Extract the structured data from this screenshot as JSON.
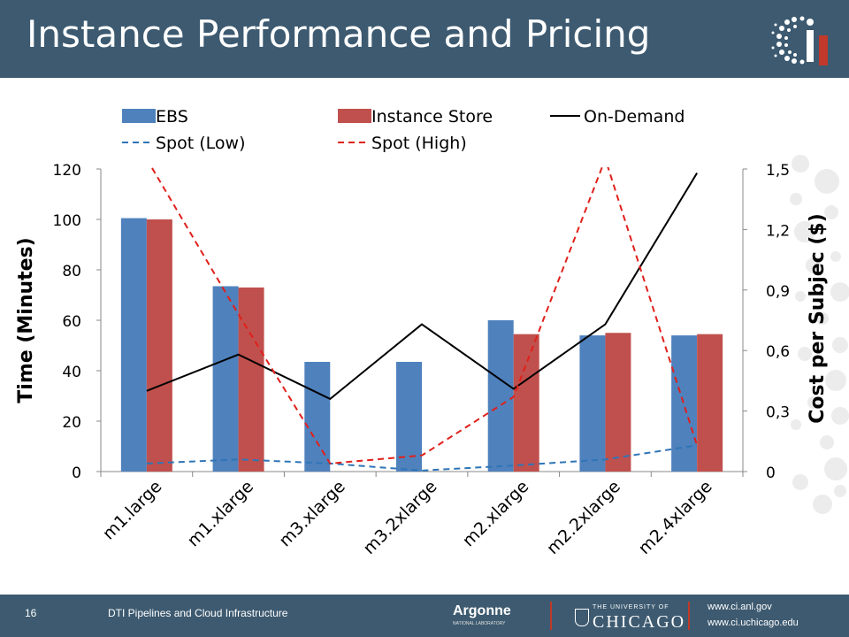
{
  "slide": {
    "title": "Instance Performance and Pricing",
    "page_number": "16",
    "footer_text": "DTI Pipelines and Cloud Infrastructure",
    "urls": [
      "www.ci.anl.gov",
      "www.ci.uchicago.edu"
    ],
    "logos": {
      "argonne": "Argonne",
      "argonne_sub": "NATIONAL LABORATORY",
      "uchicago_small": "THE UNIVERSITY OF",
      "uchicago_big": "CHICAGO"
    },
    "colors": {
      "title_bar": "#3d5a70",
      "footer_bar": "#3d5a70"
    }
  },
  "chart_data": {
    "type": "bar",
    "categories": [
      "m1.large",
      "m1.xlarge",
      "m3.xlarge",
      "m3.2xlarge",
      "m2.xlarge",
      "m2.2xlarge",
      "m2.4xlarge"
    ],
    "ylabel": "Time (Minutes)",
    "y2label": "Cost per Subjec ($)",
    "ylim": [
      0,
      120
    ],
    "y2lim": [
      0,
      1.5
    ],
    "yticks": [
      "0",
      "20",
      "40",
      "60",
      "80",
      "100",
      "120"
    ],
    "y2ticks": [
      "0",
      "0,3",
      "0,6",
      "0,9",
      "1,2",
      "1,5"
    ],
    "legend_position": "top",
    "series": [
      {
        "name": "EBS",
        "type": "bar",
        "axis": "left",
        "color": "#4f81bd",
        "values": [
          100.5,
          73.5,
          43.5,
          43.5,
          60,
          54,
          54
        ]
      },
      {
        "name": "Instance Store",
        "type": "bar",
        "axis": "left",
        "color": "#c0504d",
        "values": [
          100,
          73,
          null,
          null,
          54.5,
          55,
          54.5
        ]
      },
      {
        "name": "On-Demand",
        "type": "line",
        "axis": "right",
        "color": "#000000",
        "dash": "solid",
        "values": [
          0.4,
          0.58,
          0.36,
          0.73,
          0.41,
          0.73,
          1.48
        ]
      },
      {
        "name": "Spot (Low)",
        "type": "line",
        "axis": "right",
        "color": "#2e75b6",
        "dash": "dashed",
        "values": [
          0.04,
          0.06,
          0.04,
          0.005,
          0.03,
          0.06,
          0.13
        ]
      },
      {
        "name": "Spot (High)",
        "type": "line",
        "axis": "right",
        "color": "#e0201b",
        "dash": "dashed",
        "values": [
          1.55,
          0.78,
          0.04,
          0.08,
          0.37,
          1.55,
          0.13
        ],
        "x_offsets": [
          0,
          0,
          0,
          0,
          0,
          0,
          0
        ]
      }
    ]
  }
}
